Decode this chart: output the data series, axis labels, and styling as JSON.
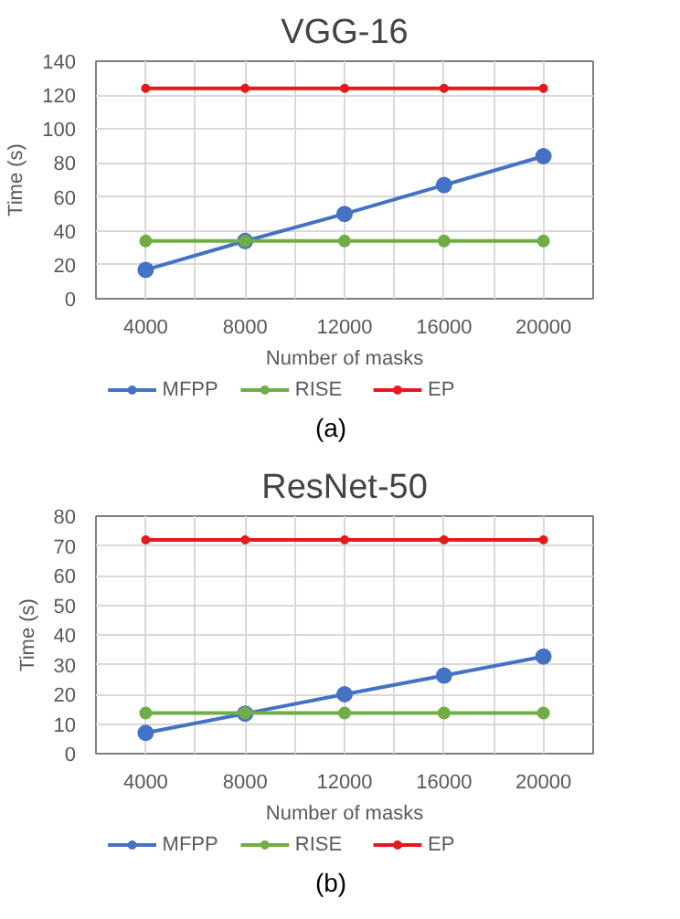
{
  "chart_data": [
    {
      "type": "line",
      "title": "VGG-16",
      "xlabel": "Number of masks",
      "ylabel": "Time (s)",
      "x": [
        4000,
        8000,
        12000,
        16000,
        20000
      ],
      "series": [
        {
          "name": "MFPP",
          "color": "#4472c4",
          "values": [
            17,
            34,
            50,
            67,
            84
          ]
        },
        {
          "name": "RISE",
          "color": "#70ad47",
          "values": [
            34,
            34,
            34,
            34,
            34
          ]
        },
        {
          "name": "EP",
          "color": "#e41a1c",
          "values": [
            124,
            124,
            124,
            124,
            124
          ]
        }
      ],
      "xlim": [
        2000,
        22000
      ],
      "xticks": [
        {
          "value": 2000,
          "label": null
        },
        4000,
        {
          "value": 6000,
          "label": null
        },
        8000,
        {
          "value": 10000,
          "label": null
        },
        12000,
        {
          "value": 14000,
          "label": null
        },
        16000,
        {
          "value": 18000,
          "label": null
        },
        20000,
        {
          "value": 22000,
          "label": null
        }
      ],
      "ylim": [
        0,
        140
      ],
      "yticks": [
        0,
        20,
        40,
        60,
        80,
        100,
        120,
        140
      ],
      "grid": true,
      "legend": "bottom",
      "marker": "circle",
      "line_style": "solid",
      "annotations": [
        "(a)"
      ]
    },
    {
      "type": "line",
      "title": "ResNet-50",
      "xlabel": "Number of masks",
      "ylabel": "Time (s)",
      "x": [
        4000,
        8000,
        12000,
        16000,
        20000
      ],
      "series": [
        {
          "name": "MFPP",
          "color": "#4472c4",
          "values": [
            7,
            13.5,
            20,
            26.3,
            32.7
          ]
        },
        {
          "name": "RISE",
          "color": "#70ad47",
          "values": [
            13.7,
            13.7,
            13.7,
            13.7,
            13.7
          ]
        },
        {
          "name": "EP",
          "color": "#e41a1c",
          "values": [
            72,
            72,
            72,
            72,
            72
          ]
        }
      ],
      "xlim": [
        2000,
        22000
      ],
      "xticks": [
        {
          "value": 2000,
          "label": null
        },
        4000,
        {
          "value": 6000,
          "label": null
        },
        8000,
        {
          "value": 10000,
          "label": null
        },
        12000,
        {
          "value": 14000,
          "label": null
        },
        16000,
        {
          "value": 18000,
          "label": null
        },
        20000,
        {
          "value": 22000,
          "label": null
        }
      ],
      "ylim": [
        0,
        80
      ],
      "yticks": [
        0,
        10,
        20,
        30,
        40,
        50,
        60,
        70,
        80
      ],
      "grid": true,
      "legend": "bottom",
      "marker": "circle",
      "line_style": "solid",
      "annotations": [
        "(b)"
      ]
    }
  ]
}
